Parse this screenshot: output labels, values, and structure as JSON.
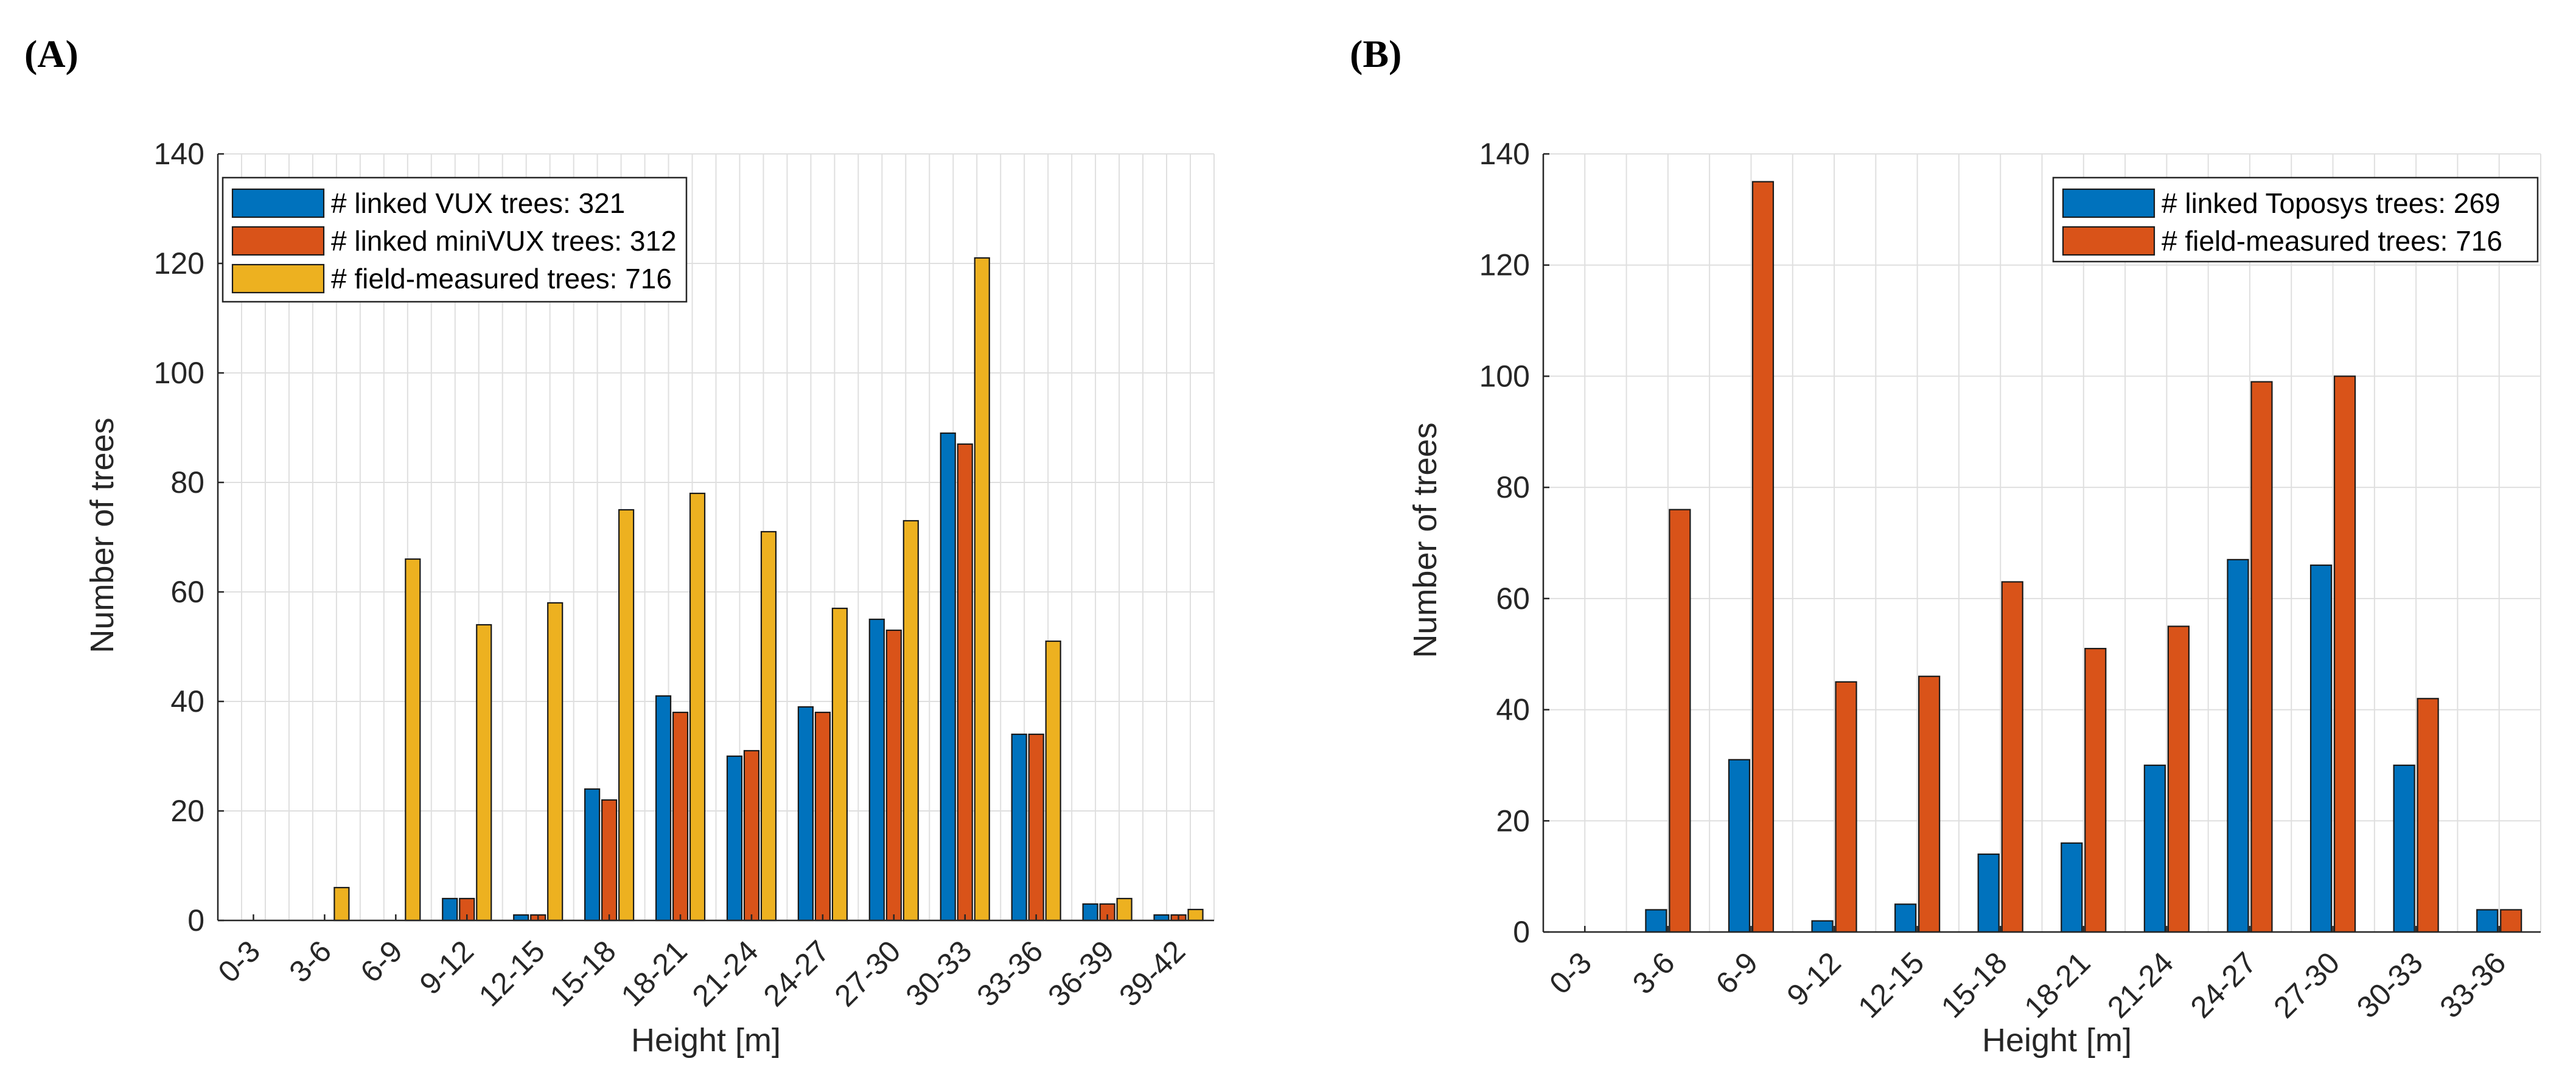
{
  "chart_data": [
    {
      "type": "bar",
      "panel": "(A)",
      "title": "",
      "xlabel": "Height [m]",
      "ylabel": "Number of trees",
      "ylim": [
        0,
        140
      ],
      "yticks": [
        "0",
        "20",
        "40",
        "60",
        "80",
        "100",
        "120",
        "140"
      ],
      "grid": true,
      "legend_position": "top-left",
      "categories": [
        "0-3",
        "3-6",
        "6-9",
        "9-12",
        "12-15",
        "15-18",
        "18-21",
        "21-24",
        "24-27",
        "27-30",
        "30-33",
        "33-36",
        "36-39",
        "39-42"
      ],
      "series": [
        {
          "name": "# linked VUX trees: 321",
          "color": "#0072BD",
          "values": [
            0,
            0,
            0,
            4,
            1,
            24,
            41,
            30,
            39,
            55,
            89,
            34,
            3,
            1
          ]
        },
        {
          "name": "# linked miniVUX trees: 312",
          "color": "#D95319",
          "values": [
            0,
            0,
            0,
            4,
            1,
            22,
            38,
            31,
            38,
            53,
            87,
            34,
            3,
            1
          ]
        },
        {
          "name": "# field-measured trees: 716",
          "color": "#EDB120",
          "values": [
            0,
            6,
            66,
            54,
            58,
            75,
            78,
            71,
            57,
            73,
            121,
            51,
            4,
            2
          ]
        }
      ]
    },
    {
      "type": "bar",
      "panel": "(B)",
      "title": "",
      "xlabel": "Height [m]",
      "ylabel": "Number of trees",
      "ylim": [
        0,
        140
      ],
      "yticks": [
        "0",
        "20",
        "40",
        "60",
        "80",
        "100",
        "120",
        "140"
      ],
      "grid": true,
      "legend_position": "top-right",
      "categories": [
        "0-3",
        "3-6",
        "6-9",
        "9-12",
        "12-15",
        "15-18",
        "18-21",
        "21-24",
        "24-27",
        "27-30",
        "30-33",
        "33-36"
      ],
      "series": [
        {
          "name": "# linked Toposys trees: 269",
          "color": "#0072BD",
          "values": [
            0,
            4,
            31,
            2,
            5,
            14,
            16,
            30,
            67,
            66,
            30,
            4
          ]
        },
        {
          "name": "# field-measured trees: 716",
          "color": "#D95319",
          "values": [
            0,
            76,
            135,
            45,
            46,
            63,
            51,
            55,
            99,
            100,
            42,
            4
          ]
        }
      ]
    }
  ]
}
